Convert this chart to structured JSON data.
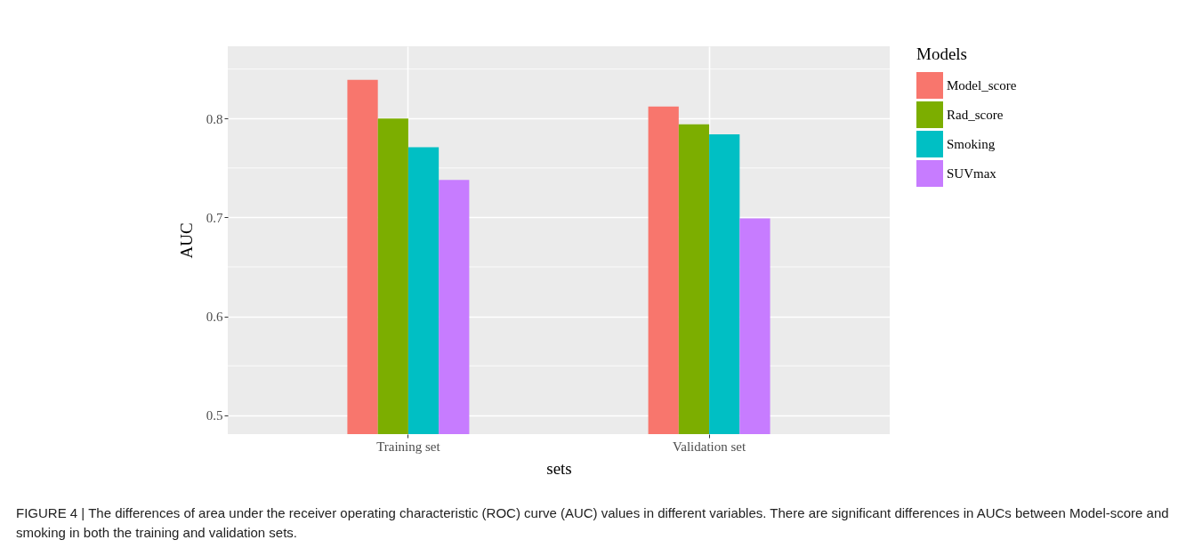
{
  "chart_data": {
    "type": "bar",
    "xlabel": "sets",
    "ylabel": "AUC",
    "legend_title": "Models",
    "legend": "right",
    "grid": true,
    "categories": [
      "Training set",
      "Validation set"
    ],
    "series": [
      {
        "name": "Model_score",
        "color": "#f8766d",
        "values": [
          0.839,
          0.812
        ]
      },
      {
        "name": "Rad_score",
        "color": "#7cae00",
        "values": [
          0.8,
          0.794
        ]
      },
      {
        "name": "Smoking",
        "color": "#00bfc4",
        "values": [
          0.771,
          0.784
        ]
      },
      {
        "name": "SUVmax",
        "color": "#c77cff",
        "values": [
          0.738,
          0.699
        ]
      }
    ],
    "ylim": [
      0.481,
      0.873
    ],
    "yticks": [
      0.5,
      0.6,
      0.7,
      0.8
    ],
    "annotations": [
      "FIGURE 4 | The differences of area under the receiver operating characteristic (ROC) curve (AUC) values in different variables. There are significant differences in AUCs between Model-score and smoking in both the training and validation sets."
    ]
  }
}
